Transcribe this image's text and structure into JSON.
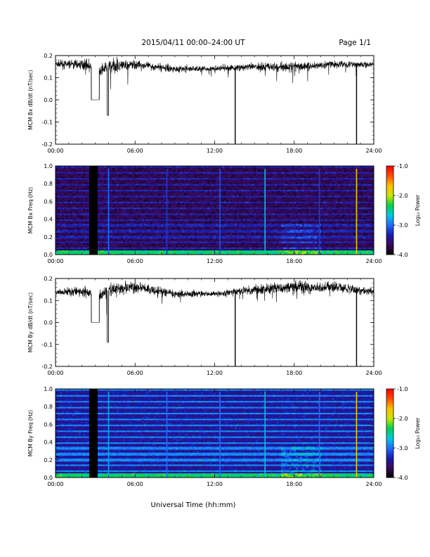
{
  "page": {
    "title": "2015/04/11  00:00–24:00 UT",
    "page_label": "Page 1/1",
    "xlabel": "Universal Time (hh:mm)"
  },
  "colors": {
    "trace": "#000000",
    "colormap": [
      "#000000",
      "#3a0a5a",
      "#1a1aa8",
      "#1e6bff",
      "#00c8e0",
      "#00d050",
      "#c8e600",
      "#ffc000",
      "#ff5000",
      "#ff0000"
    ]
  },
  "chart_data": [
    {
      "type": "line",
      "id": "bx_dbdt",
      "ylabel": "MCM Bx dB/dt (nT/sec)",
      "xlim": [
        0,
        24
      ],
      "ylim": [
        -0.2,
        0.2
      ],
      "xticks": [
        "00:00",
        "06:00",
        "12:00",
        "18:00",
        "24:00"
      ],
      "yticks": [
        "0.2",
        "0.1",
        "0.0",
        "-0.1",
        "-0.2"
      ],
      "ytick_values": [
        0.2,
        0.1,
        0.0,
        -0.1,
        -0.2
      ],
      "series": [
        {
          "baseline": [
            [
              0,
              0.16
            ],
            [
              2.4,
              0.16
            ],
            [
              3.2,
              0.12
            ],
            [
              4,
              0.15
            ],
            [
              6,
              0.16
            ],
            [
              9,
              0.14
            ],
            [
              12,
              0.14
            ],
            [
              15,
              0.15
            ],
            [
              18,
              0.15
            ],
            [
              21,
              0.16
            ],
            [
              24,
              0.16
            ]
          ],
          "noise": [
            [
              0,
              0.02
            ],
            [
              3,
              0.03
            ],
            [
              4,
              0.04
            ],
            [
              7,
              0.02
            ],
            [
              12,
              0.015
            ],
            [
              15,
              0.02
            ],
            [
              18,
              0.03
            ],
            [
              21,
              0.02
            ],
            [
              24,
              0.015
            ]
          ],
          "gaps": [
            [
              2.7,
              3.3,
              0.0
            ],
            [
              3.9,
              4.0,
              -0.07
            ]
          ],
          "spikes": [
            [
              13.55,
              -0.2
            ],
            [
              22.7,
              -0.2
            ]
          ]
        }
      ]
    },
    {
      "type": "heatmap",
      "id": "bx_spec",
      "ylabel": "MCM Bx Freq (Hz)",
      "colorbar_label": "Log₁₀ Power",
      "colorbar_ticks": [
        "-1.0",
        "-2.0",
        "-3.0",
        "-4.0"
      ],
      "colorbar_values": [
        -1.0,
        -2.0,
        -3.0,
        -4.0
      ],
      "xlim": [
        0,
        24
      ],
      "ylim": [
        0,
        1
      ],
      "clim": [
        -4,
        -1
      ],
      "xticks": [
        "00:00",
        "06:00",
        "12:00",
        "18:00",
        "24:00"
      ],
      "yticks": [
        "1.0",
        "0.8",
        "0.6",
        "0.4",
        "0.2",
        "0.0"
      ],
      "ytick_values": [
        1.0,
        0.8,
        0.6,
        0.4,
        0.2,
        0.0
      ],
      "background_level": -3.7,
      "harmonic_level": -3.3,
      "harmonic_spacing_hz": 0.066,
      "datagap": [
        2.6,
        3.1
      ],
      "vertical_lines": [
        [
          4.0,
          -3.0
        ],
        [
          8.4,
          -3.2
        ],
        [
          12.4,
          -3.1
        ],
        [
          15.8,
          -2.7
        ],
        [
          19.9,
          -3.2
        ],
        [
          22.7,
          -1.8
        ]
      ]
    },
    {
      "type": "line",
      "id": "by_dbdt",
      "ylabel": "MCM By dB/dt (nT/sec)",
      "xlim": [
        0,
        24
      ],
      "ylim": [
        -0.2,
        0.2
      ],
      "xticks": [
        "00:00",
        "06:00",
        "12:00",
        "18:00",
        "24:00"
      ],
      "yticks": [
        "0.2",
        "0.1",
        "0.0",
        "-0.1",
        "-0.2"
      ],
      "ytick_values": [
        0.2,
        0.1,
        0.0,
        -0.1,
        -0.2
      ],
      "series": [
        {
          "baseline": [
            [
              0,
              0.14
            ],
            [
              2.4,
              0.14
            ],
            [
              3.2,
              0.11
            ],
            [
              4,
              0.15
            ],
            [
              6,
              0.16
            ],
            [
              9,
              0.13
            ],
            [
              12,
              0.13
            ],
            [
              15,
              0.15
            ],
            [
              18,
              0.16
            ],
            [
              21,
              0.16
            ],
            [
              24,
              0.14
            ]
          ],
          "noise": [
            [
              0,
              0.02
            ],
            [
              3,
              0.03
            ],
            [
              4,
              0.04
            ],
            [
              7,
              0.025
            ],
            [
              12,
              0.015
            ],
            [
              15,
              0.025
            ],
            [
              18,
              0.035
            ],
            [
              21,
              0.03
            ],
            [
              24,
              0.02
            ]
          ],
          "gaps": [
            [
              2.7,
              3.3,
              0.0
            ],
            [
              3.9,
              4.0,
              -0.09
            ]
          ],
          "spikes": [
            [
              13.55,
              -0.2
            ],
            [
              22.7,
              -0.2
            ]
          ]
        }
      ]
    },
    {
      "type": "heatmap",
      "id": "by_spec",
      "ylabel": "MCM By Freq (Hz)",
      "colorbar_label": "Log₁₀ Power",
      "colorbar_ticks": [
        "-1.0",
        "-2.0",
        "-3.0",
        "-4.0"
      ],
      "colorbar_values": [
        -1.0,
        -2.0,
        -3.0,
        -4.0
      ],
      "xlim": [
        0,
        24
      ],
      "ylim": [
        0,
        1
      ],
      "clim": [
        -4,
        -1
      ],
      "xticks": [
        "00:00",
        "06:00",
        "12:00",
        "18:00",
        "24:00"
      ],
      "yticks": [
        "1.0",
        "0.8",
        "0.6",
        "0.4",
        "0.2",
        "0.0"
      ],
      "ytick_values": [
        1.0,
        0.8,
        0.6,
        0.4,
        0.2,
        0.0
      ],
      "background_level": -3.4,
      "harmonic_level": -2.9,
      "harmonic_spacing_hz": 0.066,
      "datagap": [
        2.6,
        3.1
      ],
      "vertical_lines": [
        [
          4.0,
          -2.8
        ],
        [
          8.4,
          -3.0
        ],
        [
          12.4,
          -3.0
        ],
        [
          15.8,
          -2.6
        ],
        [
          19.9,
          -3.0
        ],
        [
          22.7,
          -1.8
        ]
      ]
    }
  ]
}
